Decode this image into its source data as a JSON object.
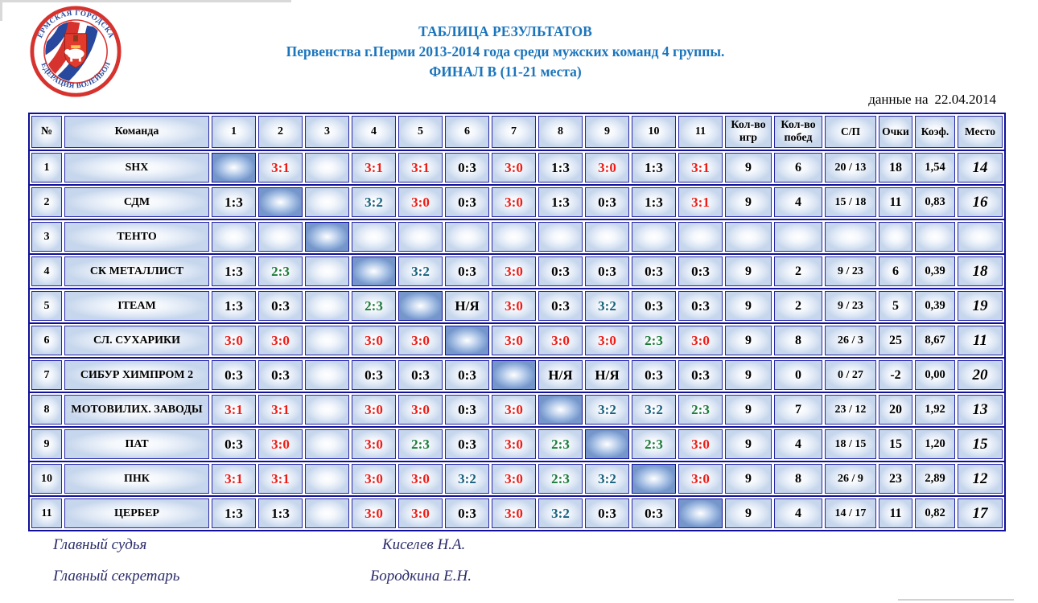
{
  "logo": {
    "top_text": "ПЕРМСКАЯ ГОРОДСКАЯ",
    "bottom_text": "ФЕДЕРАЦИЯ ВОЛЕЙБОЛА"
  },
  "header": {
    "title1": "ТАБЛИЦА РЕЗУЛЬТАТОВ",
    "title2": "Первенства г.Перми 2013-2014 года среди мужских команд 4 группы.",
    "title3": "ФИНАЛ  В (11-21 места)",
    "data_as_of_label": "данные на",
    "data_as_of_date": "22.04.2014"
  },
  "colors": {
    "title_blue": "#1b75bc",
    "table_border_navy": "#10109a",
    "diagonal_cell_blue": "#7596cb",
    "logo_red": "#d6332f",
    "logo_blue": "#27489c",
    "score": {
      "win": "#ed1c16",
      "loss": "#000000",
      "tie32": "#17607d",
      "tie23": "#1d7b38",
      "ny": "#000000"
    }
  },
  "table": {
    "columns": {
      "num": "№",
      "team": "Команда",
      "rounds": [
        "1",
        "2",
        "3",
        "4",
        "5",
        "6",
        "7",
        "8",
        "9",
        "10",
        "11"
      ],
      "games": "Кол-во\nигр",
      "wins": "Кол-во\nпобед",
      "sp": "С/П",
      "points": "Очки",
      "coef": "Коэф.",
      "place": "Место"
    },
    "rows": [
      {
        "num": "1",
        "team": "SHX",
        "cells": [
          {
            "t": "diag"
          },
          {
            "v": "3:1",
            "t": "win"
          },
          {
            "t": "blank"
          },
          {
            "v": "3:1",
            "t": "win"
          },
          {
            "v": "3:1",
            "t": "win"
          },
          {
            "v": "0:3",
            "t": "loss"
          },
          {
            "v": "3:0",
            "t": "win"
          },
          {
            "v": "1:3",
            "t": "loss"
          },
          {
            "v": "3:0",
            "t": "win"
          },
          {
            "v": "1:3",
            "t": "loss"
          },
          {
            "v": "3:1",
            "t": "win"
          }
        ],
        "games": "9",
        "wins": "6",
        "sp": "20 / 13",
        "points": "18",
        "coef": "1,54",
        "place": "14"
      },
      {
        "num": "2",
        "team": "СДМ",
        "cells": [
          {
            "v": "1:3",
            "t": "loss"
          },
          {
            "t": "diag"
          },
          {
            "t": "blank"
          },
          {
            "v": "3:2",
            "t": "tie32"
          },
          {
            "v": "3:0",
            "t": "win"
          },
          {
            "v": "0:3",
            "t": "loss"
          },
          {
            "v": "3:0",
            "t": "win"
          },
          {
            "v": "1:3",
            "t": "loss"
          },
          {
            "v": "0:3",
            "t": "loss"
          },
          {
            "v": "1:3",
            "t": "loss"
          },
          {
            "v": "3:1",
            "t": "win"
          }
        ],
        "games": "9",
        "wins": "4",
        "sp": "15 / 18",
        "points": "11",
        "coef": "0,83",
        "place": "16"
      },
      {
        "num": "3",
        "team": "ТЕНТО",
        "cells": [
          {
            "t": "blank"
          },
          {
            "t": "blank"
          },
          {
            "t": "diag"
          },
          {
            "t": "blank"
          },
          {
            "t": "blank"
          },
          {
            "t": "blank"
          },
          {
            "t": "blank"
          },
          {
            "t": "blank"
          },
          {
            "t": "blank"
          },
          {
            "t": "blank"
          },
          {
            "t": "blank"
          }
        ],
        "games": "",
        "wins": "",
        "sp": "",
        "points": "",
        "coef": "",
        "place": ""
      },
      {
        "num": "4",
        "team": "СК МЕТАЛЛИСТ",
        "cells": [
          {
            "v": "1:3",
            "t": "loss"
          },
          {
            "v": "2:3",
            "t": "tie23"
          },
          {
            "t": "blank"
          },
          {
            "t": "diag"
          },
          {
            "v": "3:2",
            "t": "tie32"
          },
          {
            "v": "0:3",
            "t": "loss"
          },
          {
            "v": "3:0",
            "t": "win"
          },
          {
            "v": "0:3",
            "t": "loss"
          },
          {
            "v": "0:3",
            "t": "loss"
          },
          {
            "v": "0:3",
            "t": "loss"
          },
          {
            "v": "0:3",
            "t": "loss"
          }
        ],
        "games": "9",
        "wins": "2",
        "sp": "9 / 23",
        "points": "6",
        "coef": "0,39",
        "place": "18"
      },
      {
        "num": "5",
        "team": "ITEAM",
        "cells": [
          {
            "v": "1:3",
            "t": "loss"
          },
          {
            "v": "0:3",
            "t": "loss"
          },
          {
            "t": "blank"
          },
          {
            "v": "2:3",
            "t": "tie23"
          },
          {
            "t": "diag"
          },
          {
            "v": "Н/Я",
            "t": "ny"
          },
          {
            "v": "3:0",
            "t": "win"
          },
          {
            "v": "0:3",
            "t": "loss"
          },
          {
            "v": "3:2",
            "t": "tie32"
          },
          {
            "v": "0:3",
            "t": "loss"
          },
          {
            "v": "0:3",
            "t": "loss"
          }
        ],
        "games": "9",
        "wins": "2",
        "sp": "9 / 23",
        "points": "5",
        "coef": "0,39",
        "place": "19"
      },
      {
        "num": "6",
        "team": "СЛ. СУХАРИКИ",
        "cells": [
          {
            "v": "3:0",
            "t": "win"
          },
          {
            "v": "3:0",
            "t": "win"
          },
          {
            "t": "blank"
          },
          {
            "v": "3:0",
            "t": "win"
          },
          {
            "v": "3:0",
            "t": "win"
          },
          {
            "t": "diag"
          },
          {
            "v": "3:0",
            "t": "win"
          },
          {
            "v": "3:0",
            "t": "win"
          },
          {
            "v": "3:0",
            "t": "win"
          },
          {
            "v": "2:3",
            "t": "tie23"
          },
          {
            "v": "3:0",
            "t": "win"
          }
        ],
        "games": "9",
        "wins": "8",
        "sp": "26 / 3",
        "points": "25",
        "coef": "8,67",
        "place": "11"
      },
      {
        "num": "7",
        "team": "СИБУР ХИМПРОМ 2",
        "cells": [
          {
            "v": "0:3",
            "t": "loss"
          },
          {
            "v": "0:3",
            "t": "loss"
          },
          {
            "t": "blank"
          },
          {
            "v": "0:3",
            "t": "loss"
          },
          {
            "v": "0:3",
            "t": "loss"
          },
          {
            "v": "0:3",
            "t": "loss"
          },
          {
            "t": "diag"
          },
          {
            "v": "Н/Я",
            "t": "ny"
          },
          {
            "v": "Н/Я",
            "t": "ny"
          },
          {
            "v": "0:3",
            "t": "loss"
          },
          {
            "v": "0:3",
            "t": "loss"
          }
        ],
        "games": "9",
        "wins": "0",
        "sp": "0 / 27",
        "points": "-2",
        "coef": "0,00",
        "place": "20"
      },
      {
        "num": "8",
        "team": "МОТОВИЛИХ. ЗАВОДЫ",
        "cells": [
          {
            "v": "3:1",
            "t": "win"
          },
          {
            "v": "3:1",
            "t": "win"
          },
          {
            "t": "blank"
          },
          {
            "v": "3:0",
            "t": "win"
          },
          {
            "v": "3:0",
            "t": "win"
          },
          {
            "v": "0:3",
            "t": "loss"
          },
          {
            "v": "3:0",
            "t": "win"
          },
          {
            "t": "diag"
          },
          {
            "v": "3:2",
            "t": "tie32"
          },
          {
            "v": "3:2",
            "t": "tie32"
          },
          {
            "v": "2:3",
            "t": "tie23"
          }
        ],
        "games": "9",
        "wins": "7",
        "sp": "23 / 12",
        "points": "20",
        "coef": "1,92",
        "place": "13"
      },
      {
        "num": "9",
        "team": "ПАТ",
        "cells": [
          {
            "v": "0:3",
            "t": "loss"
          },
          {
            "v": "3:0",
            "t": "win"
          },
          {
            "t": "blank"
          },
          {
            "v": "3:0",
            "t": "win"
          },
          {
            "v": "2:3",
            "t": "tie23"
          },
          {
            "v": "0:3",
            "t": "loss"
          },
          {
            "v": "3:0",
            "t": "win"
          },
          {
            "v": "2:3",
            "t": "tie23"
          },
          {
            "t": "diag"
          },
          {
            "v": "2:3",
            "t": "tie23"
          },
          {
            "v": "3:0",
            "t": "win"
          }
        ],
        "games": "9",
        "wins": "4",
        "sp": "18 / 15",
        "points": "15",
        "coef": "1,20",
        "place": "15"
      },
      {
        "num": "10",
        "team": "ПНК",
        "cells": [
          {
            "v": "3:1",
            "t": "win"
          },
          {
            "v": "3:1",
            "t": "win"
          },
          {
            "t": "blank"
          },
          {
            "v": "3:0",
            "t": "win"
          },
          {
            "v": "3:0",
            "t": "win"
          },
          {
            "v": "3:2",
            "t": "tie32"
          },
          {
            "v": "3:0",
            "t": "win"
          },
          {
            "v": "2:3",
            "t": "tie23"
          },
          {
            "v": "3:2",
            "t": "tie32"
          },
          {
            "t": "diag"
          },
          {
            "v": "3:0",
            "t": "win"
          }
        ],
        "games": "9",
        "wins": "8",
        "sp": "26 / 9",
        "points": "23",
        "coef": "2,89",
        "place": "12"
      },
      {
        "num": "11",
        "team": "ЦЕРБЕР",
        "cells": [
          {
            "v": "1:3",
            "t": "loss"
          },
          {
            "v": "1:3",
            "t": "loss"
          },
          {
            "t": "blank"
          },
          {
            "v": "3:0",
            "t": "win"
          },
          {
            "v": "3:0",
            "t": "win"
          },
          {
            "v": "0:3",
            "t": "loss"
          },
          {
            "v": "3:0",
            "t": "win"
          },
          {
            "v": "3:2",
            "t": "tie32"
          },
          {
            "v": "0:3",
            "t": "loss"
          },
          {
            "v": "0:3",
            "t": "loss"
          },
          {
            "t": "diag"
          }
        ],
        "games": "9",
        "wins": "4",
        "sp": "14 / 17",
        "points": "11",
        "coef": "0,82",
        "place": "17"
      }
    ]
  },
  "footer": {
    "judge_label": "Главный судья",
    "judge_name": "Киселев Н.А.",
    "secretary_label": "Главный секретарь",
    "secretary_name": "Бородкина Е.Н."
  }
}
